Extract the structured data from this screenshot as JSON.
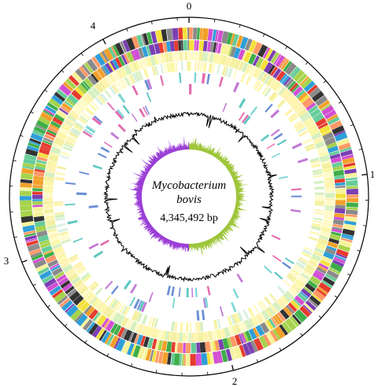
{
  "organism": {
    "genus": "Mycobacterium",
    "species": "bovis",
    "size_label": "4,345,492 bp"
  },
  "scale": {
    "labels": [
      "0",
      "1",
      "2",
      "3",
      "4"
    ],
    "genome_length_bp": 4345492,
    "label_step_mb": 1
  },
  "colors": {
    "outline": "#000000",
    "gene_palette": [
      "#e63b2e",
      "#f2a02a",
      "#f4e13a",
      "#a6d34c",
      "#3fae49",
      "#2f9fd8",
      "#7b3fb3",
      "#d14fd3",
      "#8a8a8a",
      "#333333",
      "#f7f39a",
      "#ff9966",
      "#66cc99"
    ],
    "pale_track": [
      "#fbf7a6",
      "#fffac8",
      "#f4f0a0",
      "#d6f0c0",
      "#fff3b0"
    ],
    "sparse_tracks": [
      "#7fd6d6",
      "#e46bb0",
      "#6b8fd6",
      "#5ec8c0",
      "#c27bd6"
    ],
    "gc_content": "#000000",
    "gc_skew_positive": "#9ec53a",
    "gc_skew_negative": "#9b3fd6"
  }
}
